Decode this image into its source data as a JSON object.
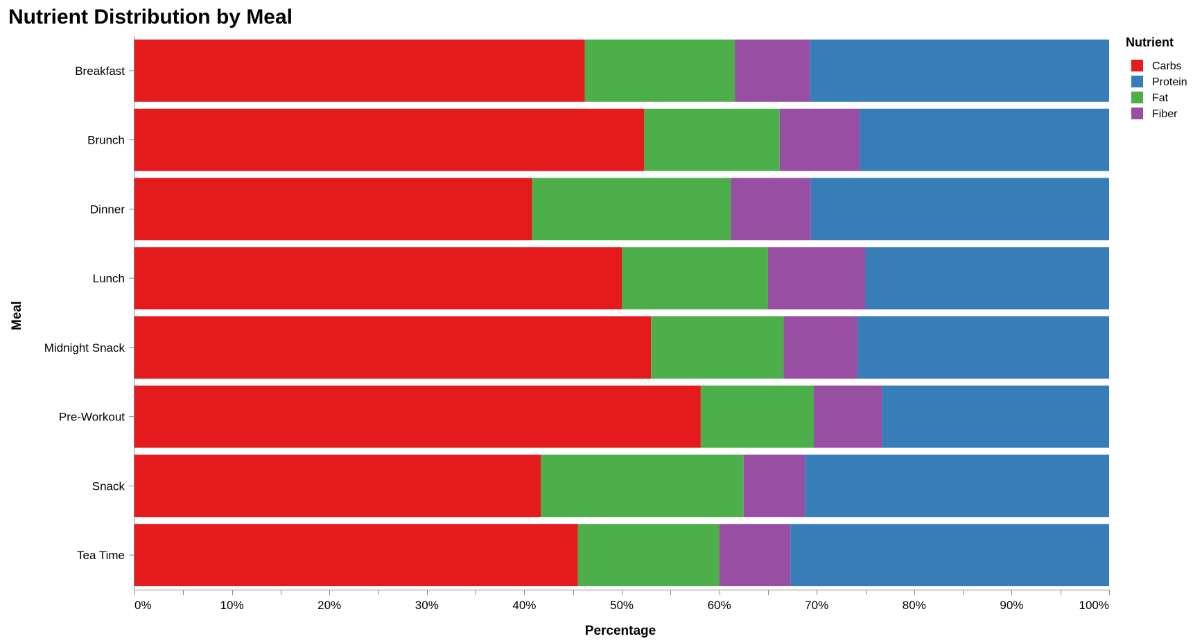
{
  "chart_data": {
    "type": "bar",
    "orientation": "horizontal",
    "stacked": "normalized",
    "title": "Nutrient Distribution by Meal",
    "xlabel": "Percentage",
    "ylabel": "Meal",
    "xlim": [
      0,
      100
    ],
    "x_ticks": [
      "0%",
      "10%",
      "20%",
      "30%",
      "40%",
      "50%",
      "60%",
      "70%",
      "80%",
      "90%",
      "100%"
    ],
    "categories": [
      "Breakfast",
      "Brunch",
      "Dinner",
      "Lunch",
      "Midnight Snack",
      "Pre-Workout",
      "Snack",
      "Tea Time"
    ],
    "series": [
      {
        "name": "Carbs",
        "color": "#e41a1c",
        "values": [
          46.2,
          52.3,
          40.8,
          50.0,
          53.0,
          58.1,
          41.7,
          45.5
        ]
      },
      {
        "name": "Fat",
        "color": "#4daf4a",
        "values": [
          15.4,
          13.9,
          20.4,
          15.0,
          13.6,
          11.6,
          20.8,
          14.5
        ]
      },
      {
        "name": "Fiber",
        "color": "#984ea3",
        "values": [
          7.7,
          8.2,
          8.2,
          10.0,
          7.6,
          7.0,
          6.3,
          7.3
        ]
      },
      {
        "name": "Protein",
        "color": "#377eb8",
        "values": [
          30.7,
          25.6,
          30.6,
          25.0,
          25.8,
          23.3,
          31.2,
          32.7
        ]
      }
    ],
    "legend": {
      "title": "Nutrient",
      "position": "top-right",
      "items": [
        {
          "name": "Carbs",
          "color": "#e41a1c"
        },
        {
          "name": "Protein",
          "color": "#377eb8"
        },
        {
          "name": "Fat",
          "color": "#4daf4a"
        },
        {
          "name": "Fiber",
          "color": "#984ea3"
        }
      ]
    },
    "grid": false
  }
}
